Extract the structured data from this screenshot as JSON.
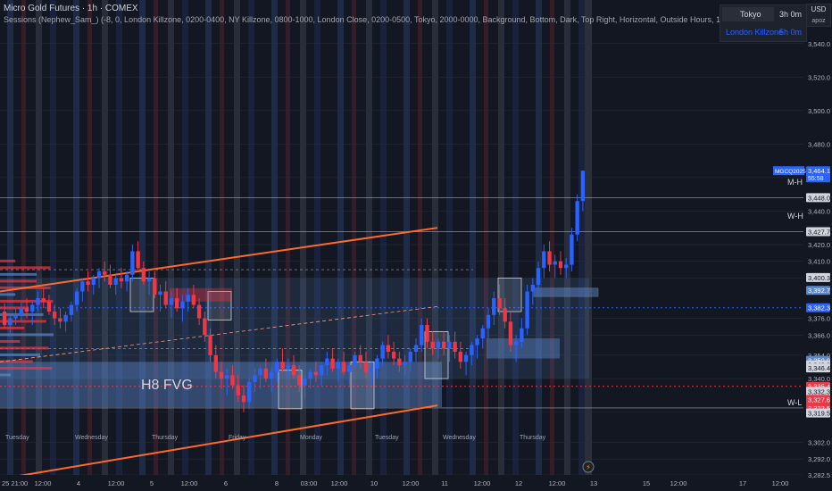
{
  "header": {
    "title": "Micro Gold Futures · 1h · COMEX",
    "subtitle": "Sessions (Nephew_Sam_) (-8, 0, London Killzone, 0200-0400, NY Killzone, 0800-1000, London Close, 0200-0500, Tokyo, 2000-0000, Background, Bottom, Dark, Top Right, Horizontal, Outside Hours, 1)"
  },
  "sessions_table": [
    {
      "name": "Tokyo",
      "duration": "3h 0m"
    },
    {
      "name": "London Killzone",
      "duration": "5h 0m"
    }
  ],
  "currency_box": {
    "currency": "USD",
    "unit": "apoz"
  },
  "colors": {
    "background": "#131722",
    "up": "#2962ff",
    "down": "#f23645",
    "channel": "#ff6a2a",
    "fvg": "#5b86c9",
    "grid": "#2a2e39",
    "text": "#d1d4dc"
  },
  "chart_data": {
    "type": "candlestick",
    "symbol": "MGCQ2025",
    "ylim": [
      3282.5,
      3550
    ],
    "y_ticks": [
      3282.5,
      3292.0,
      3302.0,
      3320.0,
      3340.0,
      3354.0,
      3366.0,
      3376.0,
      3400.0,
      3410.0,
      3420.0,
      3440.0,
      3460.0,
      3480.0,
      3500.0,
      3520.0,
      3540.0
    ],
    "x_labels": [
      "12:00",
      "4",
      "12:00",
      "5",
      "12:00",
      "6",
      "8",
      "03:00",
      "12:00",
      "10",
      "12:00",
      "11",
      "12:00",
      "12",
      "12:00",
      "13",
      "15",
      "12:00",
      "17",
      "12:00"
    ],
    "x_label_left": "25 21:00",
    "day_labels": [
      "Tuesday",
      "Wednesday",
      "Thursday",
      "Friday",
      "Monday",
      "Tuesday",
      "Wednesday",
      "Thursday"
    ],
    "annotations": {
      "fvg_label": "H8 FVG",
      "mh": "M-H",
      "wh": "W-H",
      "wl": "W-L"
    },
    "level_labels": [
      {
        "value": "3,464.1",
        "sub": "55:58",
        "name": "MGCQ2025",
        "color": "#2962ff"
      },
      {
        "value": "3,448.0",
        "color": "#d1d4dc"
      },
      {
        "value": "3,427.7",
        "color": "#d1d4dc"
      },
      {
        "value": "3,400.3",
        "color": "#d1d4dc"
      },
      {
        "value": "3,392.7",
        "color": "#5b86c9"
      },
      {
        "value": "3,382.3",
        "color": "#2962ff"
      },
      {
        "value": "3,350.9",
        "color": "#5b86c9"
      },
      {
        "value": "3,348.2",
        "color": "#d1d4dc"
      },
      {
        "value": "3,346.4",
        "color": "#d1d4dc"
      },
      {
        "value": "3,335.4",
        "color": "#f23645"
      },
      {
        "value": "3,332.4",
        "color": "#d1d4dc"
      },
      {
        "value": "3,332.3",
        "color": "#d1d4dc"
      },
      {
        "value": "3,327.6",
        "color": "#f23645"
      },
      {
        "value": "3,322.5",
        "color": "#f23645"
      },
      {
        "value": "3,319.5",
        "color": "#d1d4dc"
      }
    ],
    "candles": [
      [
        3380,
        3385,
        3370,
        3372
      ],
      [
        3372,
        3378,
        3365,
        3376
      ],
      [
        3376,
        3382,
        3372,
        3378
      ],
      [
        3378,
        3386,
        3374,
        3382
      ],
      [
        3382,
        3388,
        3376,
        3380
      ],
      [
        3380,
        3386,
        3372,
        3384
      ],
      [
        3384,
        3392,
        3380,
        3388
      ],
      [
        3388,
        3394,
        3382,
        3386
      ],
      [
        3386,
        3390,
        3378,
        3380
      ],
      [
        3380,
        3384,
        3372,
        3376
      ],
      [
        3376,
        3382,
        3370,
        3374
      ],
      [
        3374,
        3380,
        3368,
        3378
      ],
      [
        3378,
        3386,
        3374,
        3384
      ],
      [
        3384,
        3394,
        3380,
        3392
      ],
      [
        3392,
        3400,
        3386,
        3398
      ],
      [
        3398,
        3404,
        3392,
        3396
      ],
      [
        3396,
        3402,
        3390,
        3400
      ],
      [
        3400,
        3406,
        3394,
        3404
      ],
      [
        3404,
        3410,
        3398,
        3402
      ],
      [
        3402,
        3408,
        3394,
        3396
      ],
      [
        3396,
        3402,
        3390,
        3400
      ],
      [
        3400,
        3406,
        3394,
        3398
      ],
      [
        3398,
        3404,
        3392,
        3402
      ],
      [
        3402,
        3420,
        3398,
        3416
      ],
      [
        3416,
        3422,
        3404,
        3406
      ],
      [
        3406,
        3410,
        3396,
        3398
      ],
      [
        3398,
        3404,
        3390,
        3400
      ],
      [
        3400,
        3404,
        3388,
        3390
      ],
      [
        3390,
        3396,
        3380,
        3392
      ],
      [
        3392,
        3398,
        3382,
        3384
      ],
      [
        3384,
        3392,
        3376,
        3388
      ],
      [
        3388,
        3394,
        3380,
        3382
      ],
      [
        3382,
        3390,
        3374,
        3386
      ],
      [
        3386,
        3394,
        3380,
        3390
      ],
      [
        3390,
        3396,
        3382,
        3384
      ],
      [
        3384,
        3388,
        3372,
        3376
      ],
      [
        3376,
        3380,
        3362,
        3366
      ],
      [
        3366,
        3370,
        3350,
        3354
      ],
      [
        3354,
        3360,
        3340,
        3344
      ],
      [
        3344,
        3350,
        3334,
        3340
      ],
      [
        3340,
        3346,
        3330,
        3342
      ],
      [
        3342,
        3348,
        3334,
        3336
      ],
      [
        3336,
        3342,
        3326,
        3330
      ],
      [
        3330,
        3336,
        3320,
        3326
      ],
      [
        3326,
        3340,
        3322,
        3338
      ],
      [
        3338,
        3346,
        3332,
        3342
      ],
      [
        3342,
        3348,
        3334,
        3346
      ],
      [
        3346,
        3352,
        3338,
        3340
      ],
      [
        3340,
        3346,
        3332,
        3344
      ],
      [
        3344,
        3352,
        3338,
        3350
      ],
      [
        3350,
        3358,
        3344,
        3346
      ],
      [
        3346,
        3352,
        3340,
        3348
      ],
      [
        3348,
        3354,
        3340,
        3342
      ],
      [
        3342,
        3348,
        3332,
        3336
      ],
      [
        3336,
        3342,
        3328,
        3340
      ],
      [
        3340,
        3346,
        3334,
        3344
      ],
      [
        3344,
        3350,
        3338,
        3342
      ],
      [
        3342,
        3350,
        3336,
        3348
      ],
      [
        3348,
        3356,
        3342,
        3352
      ],
      [
        3352,
        3358,
        3344,
        3346
      ],
      [
        3346,
        3352,
        3338,
        3350
      ],
      [
        3350,
        3356,
        3342,
        3344
      ],
      [
        3344,
        3350,
        3336,
        3348
      ],
      [
        3348,
        3356,
        3342,
        3354
      ],
      [
        3354,
        3360,
        3346,
        3350
      ],
      [
        3350,
        3356,
        3340,
        3344
      ],
      [
        3344,
        3350,
        3336,
        3346
      ],
      [
        3346,
        3354,
        3340,
        3352
      ],
      [
        3352,
        3362,
        3348,
        3360
      ],
      [
        3360,
        3366,
        3352,
        3356
      ],
      [
        3356,
        3362,
        3348,
        3352
      ],
      [
        3352,
        3356,
        3344,
        3348
      ],
      [
        3348,
        3354,
        3342,
        3350
      ],
      [
        3350,
        3358,
        3344,
        3356
      ],
      [
        3356,
        3364,
        3350,
        3360
      ],
      [
        3360,
        3376,
        3356,
        3372
      ],
      [
        3372,
        3376,
        3358,
        3362
      ],
      [
        3362,
        3368,
        3354,
        3358
      ],
      [
        3358,
        3364,
        3352,
        3362
      ],
      [
        3362,
        3368,
        3354,
        3358
      ],
      [
        3358,
        3366,
        3350,
        3362
      ],
      [
        3362,
        3368,
        3352,
        3356
      ],
      [
        3356,
        3362,
        3346,
        3350
      ],
      [
        3350,
        3356,
        3342,
        3354
      ],
      [
        3354,
        3362,
        3348,
        3360
      ],
      [
        3360,
        3366,
        3352,
        3364
      ],
      [
        3364,
        3372,
        3358,
        3370
      ],
      [
        3370,
        3382,
        3364,
        3378
      ],
      [
        3378,
        3392,
        3372,
        3388
      ],
      [
        3388,
        3396,
        3378,
        3382
      ],
      [
        3382,
        3388,
        3370,
        3374
      ],
      [
        3374,
        3380,
        3356,
        3360
      ],
      [
        3360,
        3366,
        3350,
        3362
      ],
      [
        3362,
        3376,
        3358,
        3370
      ],
      [
        3370,
        3396,
        3366,
        3392
      ],
      [
        3392,
        3400,
        3384,
        3396
      ],
      [
        3396,
        3410,
        3390,
        3406
      ],
      [
        3406,
        3420,
        3400,
        3416
      ],
      [
        3416,
        3422,
        3404,
        3408
      ],
      [
        3408,
        3414,
        3400,
        3410
      ],
      [
        3410,
        3416,
        3402,
        3406
      ],
      [
        3406,
        3412,
        3400,
        3408
      ],
      [
        3408,
        3430,
        3404,
        3426
      ],
      [
        3426,
        3450,
        3422,
        3446
      ],
      [
        3446,
        3464.1,
        3440,
        3464.1
      ]
    ]
  }
}
